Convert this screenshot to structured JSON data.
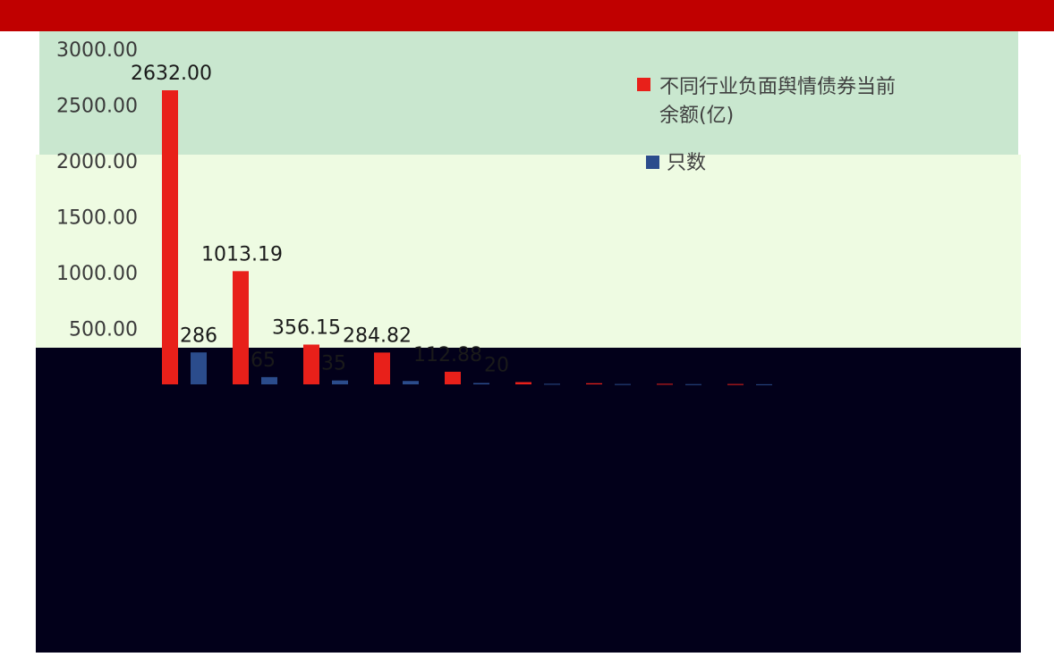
{
  "chart_data": {
    "type": "bar",
    "ylim": [
      0,
      3000
    ],
    "yticks": [
      "500.00",
      "1000.00",
      "1500.00",
      "2000.00",
      "2500.00",
      "3000.00"
    ],
    "categories": [
      "",
      "",
      "",
      "",
      "",
      "",
      "",
      "",
      ""
    ],
    "series": [
      {
        "name": "不同行业负面舆情债券当前余额(亿)",
        "color": "#e8201a",
        "values": [
          2632.0,
          1013.19,
          356.15,
          284.82,
          112.88,
          20,
          10,
          5,
          3
        ],
        "labels": [
          "2632.00",
          "1013.19",
          "356.15",
          "284.82",
          "112.88",
          "20",
          "",
          "",
          ""
        ]
      },
      {
        "name": "只数",
        "color": "#2b4c8c",
        "values": [
          286,
          65,
          35,
          30,
          12,
          5,
          3,
          2,
          1
        ],
        "labels": [
          "286",
          "65",
          "35",
          "",
          "",
          "",
          "",
          "",
          ""
        ]
      }
    ],
    "legend": "top-right",
    "grid": false
  }
}
